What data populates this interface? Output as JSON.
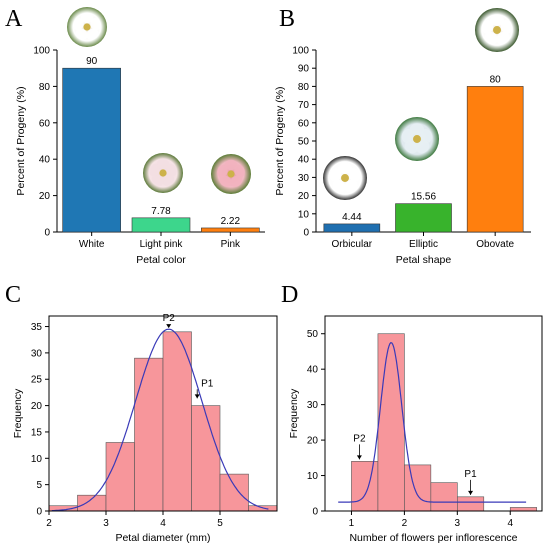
{
  "chart_data": [
    {
      "panel": "A",
      "type": "bar",
      "categories": [
        "White",
        "Light pink",
        "Pink"
      ],
      "values": [
        90,
        7.78,
        2.22
      ],
      "data_labels": [
        "90",
        "7.78",
        "2.22"
      ],
      "colors": [
        "#1f77b4",
        "#3dd68c",
        "#ff7f0e"
      ],
      "xlabel": "Petal color",
      "ylabel": "Percent of Progeny (%)",
      "ylim": [
        0,
        100
      ],
      "yticks": [
        0,
        20,
        40,
        60,
        80,
        100
      ],
      "flower_images": [
        "white-flower",
        "light-pink-flower",
        "pink-flower"
      ]
    },
    {
      "panel": "B",
      "type": "bar",
      "categories": [
        "Orbicular",
        "Elliptic",
        "Obovate"
      ],
      "values": [
        4.44,
        15.56,
        80
      ],
      "data_labels": [
        "4.44",
        "15.56",
        "80"
      ],
      "colors": [
        "#1f6fb0",
        "#38b32c",
        "#ff7f0e"
      ],
      "xlabel": "Petal shape",
      "ylabel": "Percent of Progeny (%)",
      "ylim": [
        0,
        100
      ],
      "yticks": [
        0,
        10,
        20,
        30,
        40,
        50,
        60,
        70,
        80,
        90,
        100
      ],
      "flower_images": [
        "orbicular-flower",
        "elliptic-flower",
        "obovate-flower"
      ]
    },
    {
      "panel": "C",
      "type": "bar",
      "subtype": "histogram",
      "bins": [
        {
          "x0": 2.0,
          "x1": 2.5,
          "count": 1
        },
        {
          "x0": 2.5,
          "x1": 3.0,
          "count": 3
        },
        {
          "x0": 3.0,
          "x1": 3.5,
          "count": 13
        },
        {
          "x0": 3.5,
          "x1": 4.0,
          "count": 29
        },
        {
          "x0": 4.0,
          "x1": 4.5,
          "count": 34
        },
        {
          "x0": 4.5,
          "x1": 5.0,
          "count": 20
        },
        {
          "x0": 5.0,
          "x1": 5.5,
          "count": 7
        },
        {
          "x0": 5.5,
          "x1": 6.0,
          "count": 1
        }
      ],
      "fit_curve": {
        "type": "normal",
        "mean": 4.1,
        "sd": 0.58,
        "peak": 34.5
      },
      "bar_color": "#f7969b",
      "curve_color": "#3a3ab8",
      "xlabel": "Petal diameter (mm)",
      "ylabel": "Frequency",
      "xlim": [
        2,
        6
      ],
      "ylim": [
        0,
        37
      ],
      "xticks": [
        2,
        3,
        4,
        5
      ],
      "yticks": [
        0,
        5,
        10,
        15,
        20,
        25,
        30,
        35
      ],
      "annotations": [
        {
          "label": "P2",
          "x": 4.1,
          "y": 34.5
        },
        {
          "label": "P1",
          "x": 4.6,
          "y": 21
        }
      ]
    },
    {
      "panel": "D",
      "type": "bar",
      "subtype": "histogram",
      "bins": [
        {
          "x0": 1.0,
          "x1": 1.5,
          "count": 14
        },
        {
          "x0": 1.5,
          "x1": 2.0,
          "count": 50
        },
        {
          "x0": 2.0,
          "x1": 2.5,
          "count": 13
        },
        {
          "x0": 2.5,
          "x1": 3.0,
          "count": 8
        },
        {
          "x0": 3.0,
          "x1": 3.5,
          "count": 4
        },
        {
          "x0": 4.0,
          "x1": 4.5,
          "count": 1
        }
      ],
      "fit_curve": {
        "type": "normal",
        "mean": 1.75,
        "sd": 0.2,
        "peak": 47.5,
        "baseline": 2.5
      },
      "bar_color": "#f7969b",
      "curve_color": "#3a3ab8",
      "xlabel": "Number of flowers per inflorescence",
      "ylabel": "Frequency",
      "xlim": [
        0.5,
        4.6
      ],
      "ylim": [
        0,
        55
      ],
      "xticks": [
        1,
        2,
        3,
        4
      ],
      "yticks": [
        0,
        10,
        20,
        30,
        40,
        50
      ],
      "annotations": [
        {
          "label": "P2",
          "x": 1.15,
          "y": 14
        },
        {
          "label": "P1",
          "x": 3.25,
          "y": 4
        }
      ]
    }
  ]
}
